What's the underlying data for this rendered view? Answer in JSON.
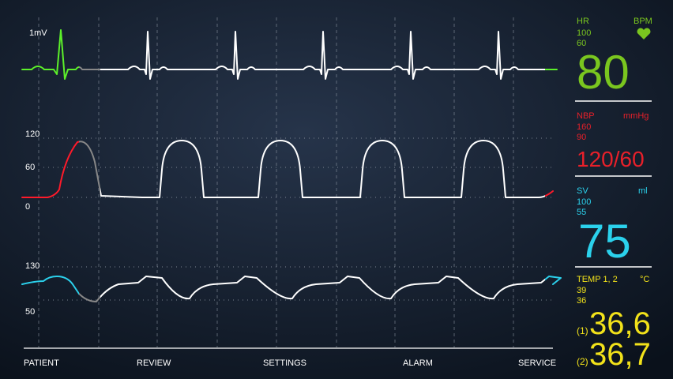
{
  "waveforms": [
    {
      "scale": [
        "1mV"
      ]
    },
    {
      "scale": [
        "120",
        "60",
        "0"
      ]
    },
    {
      "scale": [
        "130",
        "50"
      ]
    }
  ],
  "menu": [
    "PATIENT",
    "REVIEW",
    "SETTINGS",
    "ALARM",
    "SERVICE"
  ],
  "vitals": {
    "hr": {
      "label": "HR",
      "unit": "BPM",
      "high": "100",
      "low": "60",
      "value": "80"
    },
    "nbp": {
      "label": "NBP",
      "unit": "mmHg",
      "high": "160",
      "low": "90",
      "value": "120/60"
    },
    "sv": {
      "label": "SV",
      "unit": "ml",
      "high": "100",
      "low": "55",
      "value": "75"
    },
    "temp": {
      "label": "TEMP 1, 2",
      "unit": "°C",
      "high": "39",
      "low": "36",
      "channels": [
        {
          "index": "(1)",
          "value": "36,6"
        },
        {
          "index": "(2)",
          "value": "36,7"
        }
      ]
    }
  }
}
